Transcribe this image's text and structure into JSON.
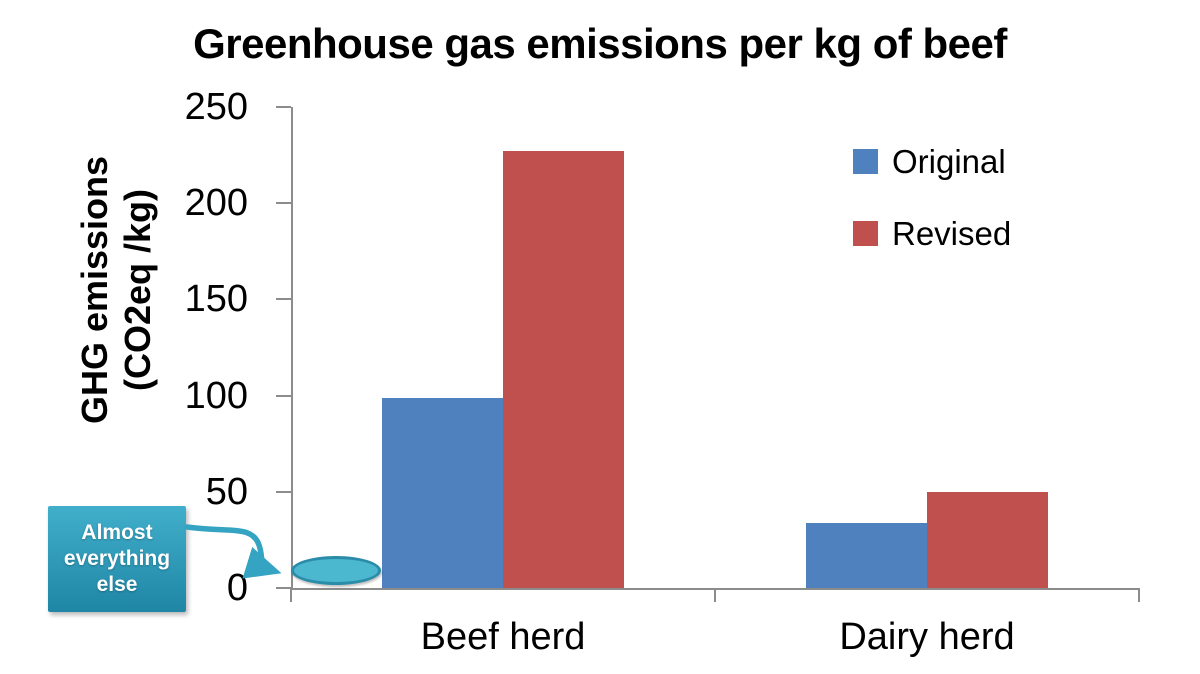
{
  "chart_data": {
    "type": "bar",
    "title": "Greenhouse gas emissions per kg of beef",
    "ylabel_lines": [
      "GHG emissions",
      "(CO2eq /kg)"
    ],
    "xlabel": "",
    "categories": [
      "Beef herd",
      "Dairy herd"
    ],
    "series": [
      {
        "name": "Original",
        "color": "#4E81BD",
        "values": [
          99,
          34
        ]
      },
      {
        "name": "Revised",
        "color": "#C0504D",
        "values": [
          227,
          50
        ]
      }
    ],
    "ylim": [
      0,
      250
    ],
    "yticks": [
      0,
      50,
      100,
      150,
      200,
      250
    ],
    "grid": false,
    "legend_position": "upper-right"
  },
  "annotation": {
    "lines": [
      "Almost",
      "everything",
      "else"
    ],
    "box_color_top": "#41AFCB",
    "box_color_bottom": "#1F86A5",
    "arrow_color": "#35A4C2",
    "ellipse_fill": "#4BB8CF",
    "ellipse_stroke": "#2B8CA9"
  },
  "colors": {
    "axis": "#8C8C8C",
    "text": "#000000",
    "background": "#FFFFFF"
  }
}
